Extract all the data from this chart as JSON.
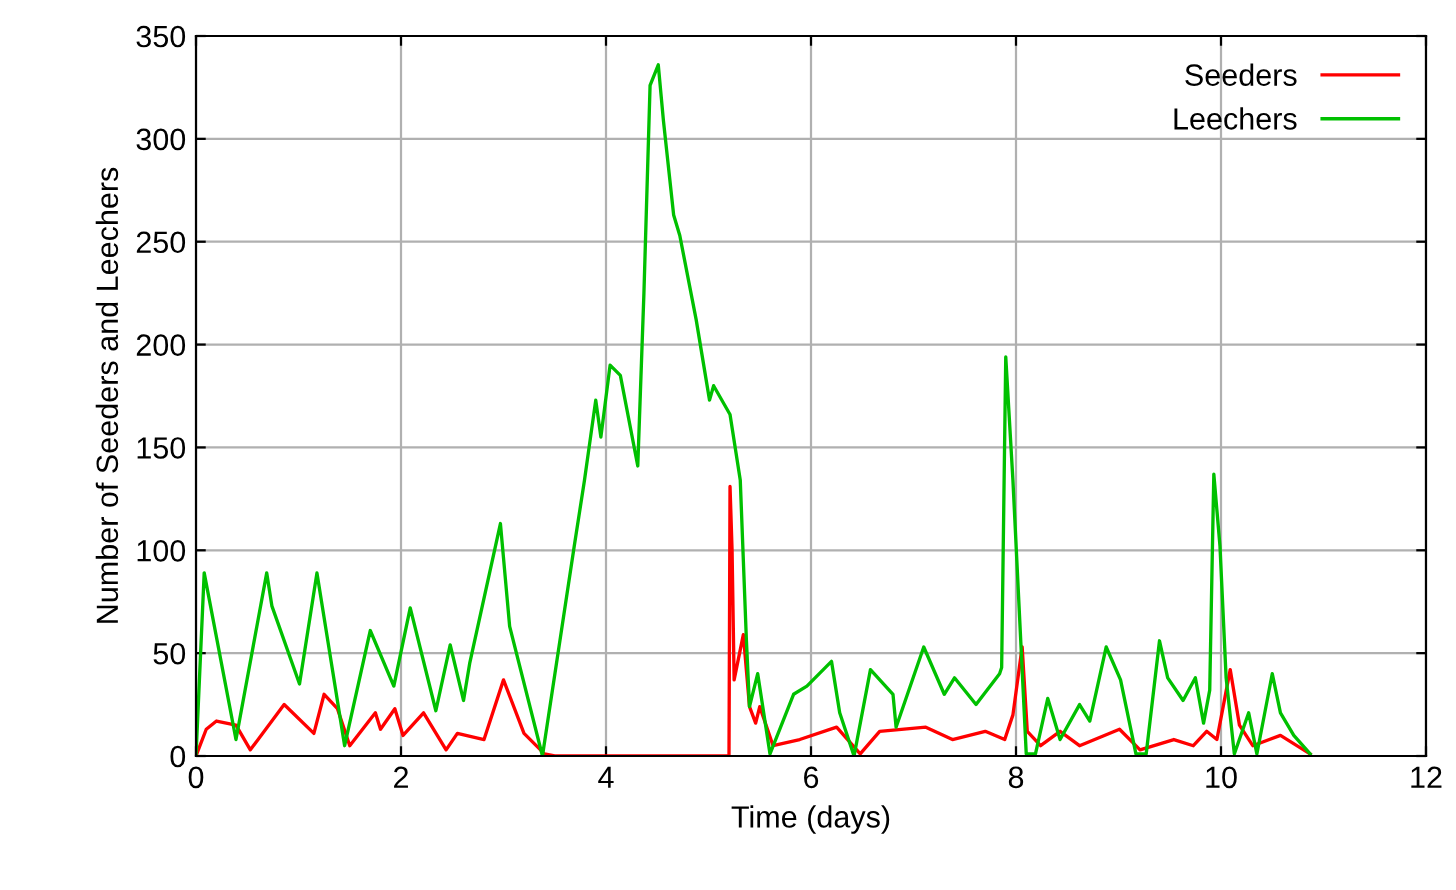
{
  "chart_data": {
    "type": "line",
    "xlabel": "Time (days)",
    "ylabel": "Number of Seeders and Leechers",
    "xlim": [
      0,
      12
    ],
    "xticks": [
      0,
      2,
      4,
      6,
      8,
      10,
      12
    ],
    "ylim": [
      0,
      350
    ],
    "yticks": [
      0,
      50,
      100,
      150,
      200,
      250,
      300,
      350
    ],
    "grid": true,
    "legend": "top right",
    "marker": "none",
    "line_style": "solid",
    "series": [
      {
        "name": "Seeders",
        "color": "#ff0000",
        "x": [
          0,
          0.1,
          0.2,
          0.39,
          0.53,
          0.86,
          1.15,
          1.25,
          1.38,
          1.5,
          1.75,
          1.8,
          1.94,
          2.02,
          2.22,
          2.44,
          2.55,
          2.81,
          3.0,
          3.2,
          3.4,
          3.5,
          5.2,
          5.21,
          5.23,
          5.25,
          5.34,
          5.4,
          5.46,
          5.5,
          5.63,
          5.89,
          6.25,
          6.48,
          6.67,
          7.12,
          7.38,
          7.7,
          7.89,
          7.97,
          8.06,
          8.11,
          8.24,
          8.43,
          8.62,
          9.01,
          9.21,
          9.54,
          9.73,
          9.86,
          9.96,
          10.09,
          10.18,
          10.31,
          10.58,
          10.87
        ],
        "values": [
          0,
          13,
          17,
          15,
          3,
          25,
          11,
          30,
          23,
          5,
          21,
          13,
          23,
          10,
          21,
          3,
          11,
          8,
          37,
          11,
          1,
          0,
          0,
          131,
          100,
          37,
          59,
          24,
          16,
          24,
          5,
          8,
          14,
          1,
          12,
          14,
          8,
          12,
          8,
          20,
          53,
          12,
          5,
          12,
          5,
          13,
          3,
          8,
          5,
          12,
          8,
          42,
          15,
          5,
          10,
          1
        ]
      },
      {
        "name": "Leechers",
        "color": "#00c000",
        "x": [
          0,
          0.08,
          0.39,
          0.69,
          0.74,
          1.01,
          1.18,
          1.45,
          1.7,
          1.93,
          2.09,
          2.34,
          2.48,
          2.61,
          2.67,
          2.97,
          3.06,
          3.38,
          3.69,
          3.79,
          3.9,
          3.95,
          4.04,
          4.14,
          4.31,
          4.37,
          4.43,
          4.51,
          4.56,
          4.66,
          4.72,
          4.88,
          5.01,
          5.05,
          5.21,
          5.31,
          5.37,
          5.4,
          5.48,
          5.6,
          5.83,
          5.96,
          6.2,
          6.28,
          6.42,
          6.58,
          6.8,
          6.83,
          7.1,
          7.3,
          7.4,
          7.61,
          7.84,
          7.86,
          7.9,
          7.97,
          8.1,
          8.19,
          8.31,
          8.43,
          8.62,
          8.72,
          8.88,
          9.02,
          9.17,
          9.27,
          9.4,
          9.48,
          9.63,
          9.75,
          9.83,
          9.89,
          9.93,
          9.99,
          10.05,
          10.13,
          10.27,
          10.35,
          10.5,
          10.58,
          10.71,
          10.87
        ],
        "values": [
          0,
          89,
          8,
          89,
          73,
          35,
          89,
          5,
          61,
          34,
          72,
          22,
          54,
          27,
          45,
          113,
          63,
          0,
          102,
          134,
          173,
          155,
          190,
          185,
          141,
          225,
          326,
          336,
          309,
          263,
          253,
          212,
          173,
          180,
          166,
          134,
          56,
          24,
          40,
          1,
          30,
          34,
          46,
          21,
          0,
          42,
          30,
          14,
          53,
          30,
          38,
          25,
          40,
          43,
          194,
          134,
          1,
          1,
          28,
          8,
          25,
          17,
          53,
          37,
          1,
          1,
          56,
          38,
          27,
          38,
          16,
          32,
          137,
          102,
          38,
          1,
          21,
          1,
          40,
          21,
          10,
          1
        ]
      }
    ]
  }
}
